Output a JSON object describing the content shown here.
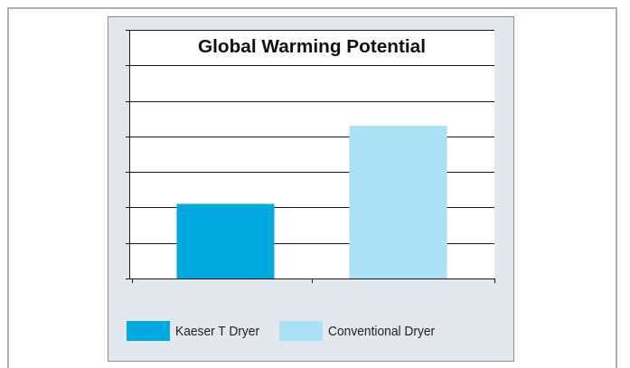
{
  "chart_data": {
    "type": "bar",
    "title": "Global Warming Potential",
    "categories": [
      "Kaeser T Dryer",
      "Conventional Dryer"
    ],
    "values": [
      2.1,
      4.3
    ],
    "colors": [
      "#00a9e0",
      "#abe1f6"
    ],
    "ylim": [
      0,
      7
    ],
    "xlabel": "",
    "ylabel": "",
    "y_tick_labels_shown": false,
    "grid": true,
    "legend_position": "bottom-left"
  },
  "legend": {
    "items": [
      {
        "label": "Kaeser T Dryer",
        "color": "#00a9e0"
      },
      {
        "label": "Conventional Dryer",
        "color": "#abe1f6"
      }
    ]
  }
}
